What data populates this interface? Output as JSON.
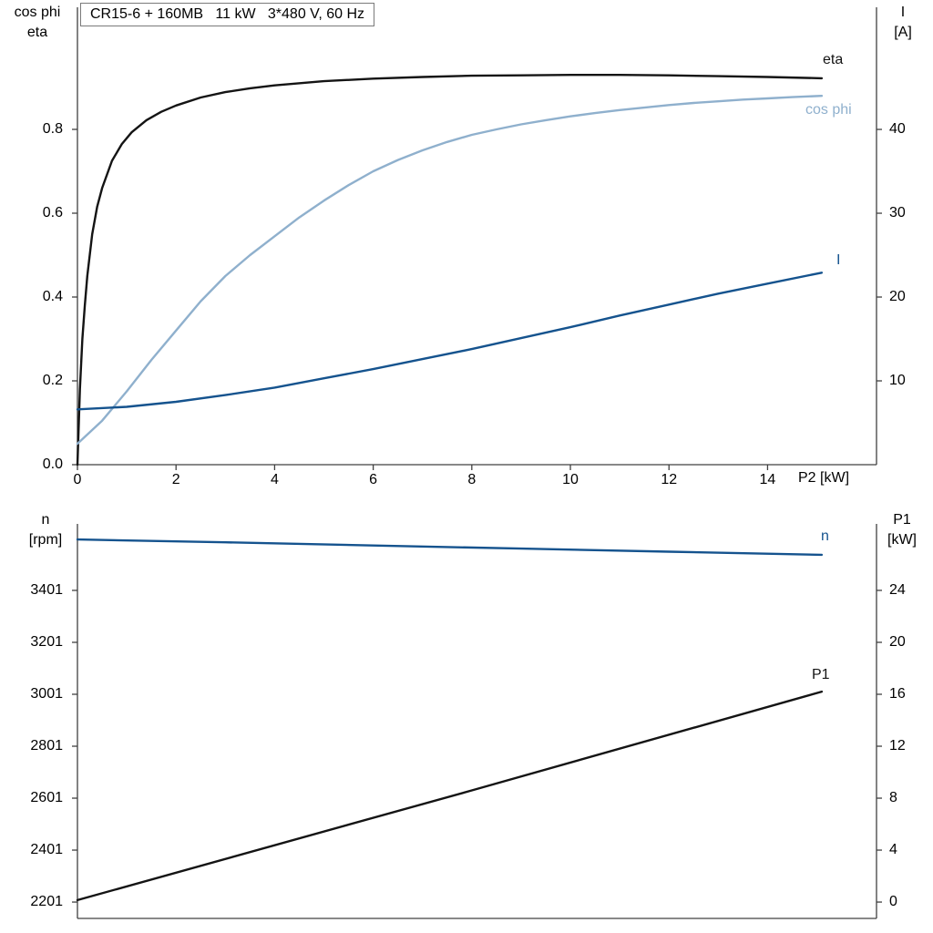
{
  "chart_data": [
    {
      "type": "line",
      "title": "CR15-6 + 160MB   11 kW   3*480 V, 60 Hz",
      "x_axis": {
        "label": "P2 [kW]",
        "range": [
          0,
          16.21
        ],
        "tick_values": [
          0,
          2,
          4,
          6,
          8,
          10,
          12,
          14
        ],
        "tick_labels": [
          "0",
          "2",
          "4",
          "6",
          "8",
          "10",
          "12",
          "14"
        ]
      },
      "y_left": {
        "label_lines": [
          "cos phi",
          "eta"
        ],
        "range": [
          0,
          1.0913
        ],
        "tick_values": [
          0,
          0.2,
          0.4,
          0.6,
          0.8
        ],
        "tick_labels": [
          "0.0",
          "0.2",
          "0.4",
          "0.6",
          "0.8"
        ]
      },
      "y_right": {
        "label_lines": [
          "I",
          "[A]"
        ],
        "range": [
          0,
          54.57
        ],
        "tick_values": [
          10,
          20,
          30,
          40
        ],
        "tick_labels": [
          "10",
          "20",
          "30",
          "40"
        ]
      },
      "series": [
        {
          "name": "eta",
          "axis": "left",
          "color": "#141414",
          "points": [
            [
              0,
              0
            ],
            [
              0.05,
              0.18
            ],
            [
              0.1,
              0.3
            ],
            [
              0.15,
              0.38
            ],
            [
              0.2,
              0.45
            ],
            [
              0.3,
              0.55
            ],
            [
              0.4,
              0.615
            ],
            [
              0.5,
              0.66
            ],
            [
              0.7,
              0.725
            ],
            [
              0.9,
              0.765
            ],
            [
              1.1,
              0.793
            ],
            [
              1.4,
              0.822
            ],
            [
              1.7,
              0.842
            ],
            [
              2,
              0.857
            ],
            [
              2.5,
              0.876
            ],
            [
              3,
              0.889
            ],
            [
              3.5,
              0.898
            ],
            [
              4,
              0.905
            ],
            [
              5,
              0.915
            ],
            [
              6,
              0.921
            ],
            [
              7,
              0.925
            ],
            [
              8,
              0.928
            ],
            [
              9,
              0.929
            ],
            [
              10,
              0.93
            ],
            [
              11,
              0.93
            ],
            [
              12,
              0.929
            ],
            [
              13,
              0.927
            ],
            [
              14,
              0.925
            ],
            [
              15.1,
              0.922
            ]
          ]
        },
        {
          "name": "cos phi",
          "axis": "left",
          "color": "#8fb0cd",
          "points": [
            [
              0,
              0.05
            ],
            [
              0.5,
              0.105
            ],
            [
              1,
              0.175
            ],
            [
              1.5,
              0.25
            ],
            [
              2,
              0.32
            ],
            [
              2.5,
              0.39
            ],
            [
              3,
              0.45
            ],
            [
              3.5,
              0.5
            ],
            [
              4,
              0.545
            ],
            [
              4.5,
              0.59
            ],
            [
              5,
              0.63
            ],
            [
              5.5,
              0.667
            ],
            [
              6,
              0.7
            ],
            [
              6.5,
              0.727
            ],
            [
              7,
              0.75
            ],
            [
              7.5,
              0.77
            ],
            [
              8,
              0.787
            ],
            [
              8.5,
              0.8
            ],
            [
              9,
              0.812
            ],
            [
              9.5,
              0.822
            ],
            [
              10,
              0.831
            ],
            [
              10.5,
              0.839
            ],
            [
              11,
              0.846
            ],
            [
              11.5,
              0.852
            ],
            [
              12,
              0.858
            ],
            [
              12.5,
              0.863
            ],
            [
              13,
              0.867
            ],
            [
              13.5,
              0.871
            ],
            [
              14,
              0.874
            ],
            [
              14.5,
              0.877
            ],
            [
              15.1,
              0.88
            ]
          ]
        },
        {
          "name": "I",
          "axis": "right",
          "color": "#15538e",
          "points": [
            [
              0,
              6.6
            ],
            [
              1,
              6.9
            ],
            [
              2,
              7.5
            ],
            [
              3,
              8.3
            ],
            [
              4,
              9.2
            ],
            [
              5,
              10.3
            ],
            [
              6,
              11.4
            ],
            [
              7,
              12.6
            ],
            [
              8,
              13.8
            ],
            [
              9,
              15.1
            ],
            [
              10,
              16.4
            ],
            [
              11,
              17.8
            ],
            [
              12,
              19.1
            ],
            [
              13,
              20.4
            ],
            [
              14,
              21.6
            ],
            [
              15.1,
              22.9
            ]
          ]
        }
      ]
    },
    {
      "type": "line",
      "x_axis": {
        "range": [
          0,
          16.21
        ]
      },
      "y_left": {
        "label_lines": [
          "n",
          "[rpm]"
        ],
        "range": [
          2138,
          3657
        ],
        "tick_values": [
          2201,
          2401,
          2601,
          2801,
          3001,
          3201,
          3401
        ],
        "tick_labels": [
          "2201",
          "2401",
          "2601",
          "2801",
          "3001",
          "3201",
          "3401"
        ]
      },
      "y_right": {
        "label_lines": [
          "P1",
          "[kW]"
        ],
        "range": [
          -1.26,
          29.12
        ],
        "tick_values": [
          0,
          4,
          8,
          12,
          16,
          20,
          24
        ],
        "tick_labels": [
          "0",
          "4",
          "8",
          "12",
          "16",
          "20",
          "24"
        ]
      },
      "series": [
        {
          "name": "n",
          "axis": "left",
          "color": "#15538e",
          "points": [
            [
              0,
              3597
            ],
            [
              3,
              3586
            ],
            [
              6,
              3574
            ],
            [
              9,
              3562
            ],
            [
              12,
              3550
            ],
            [
              15.1,
              3538
            ]
          ]
        },
        {
          "name": "P1",
          "axis": "right",
          "color": "#141414",
          "points": [
            [
              0,
              0.15
            ],
            [
              8,
              8.6
            ],
            [
              15.1,
              16.2
            ]
          ]
        }
      ]
    }
  ],
  "colors": {
    "axis_line": "#404040",
    "black_curve": "#141414",
    "light_blue_curve": "#8fb0cd",
    "dark_blue_curve": "#15538e"
  }
}
